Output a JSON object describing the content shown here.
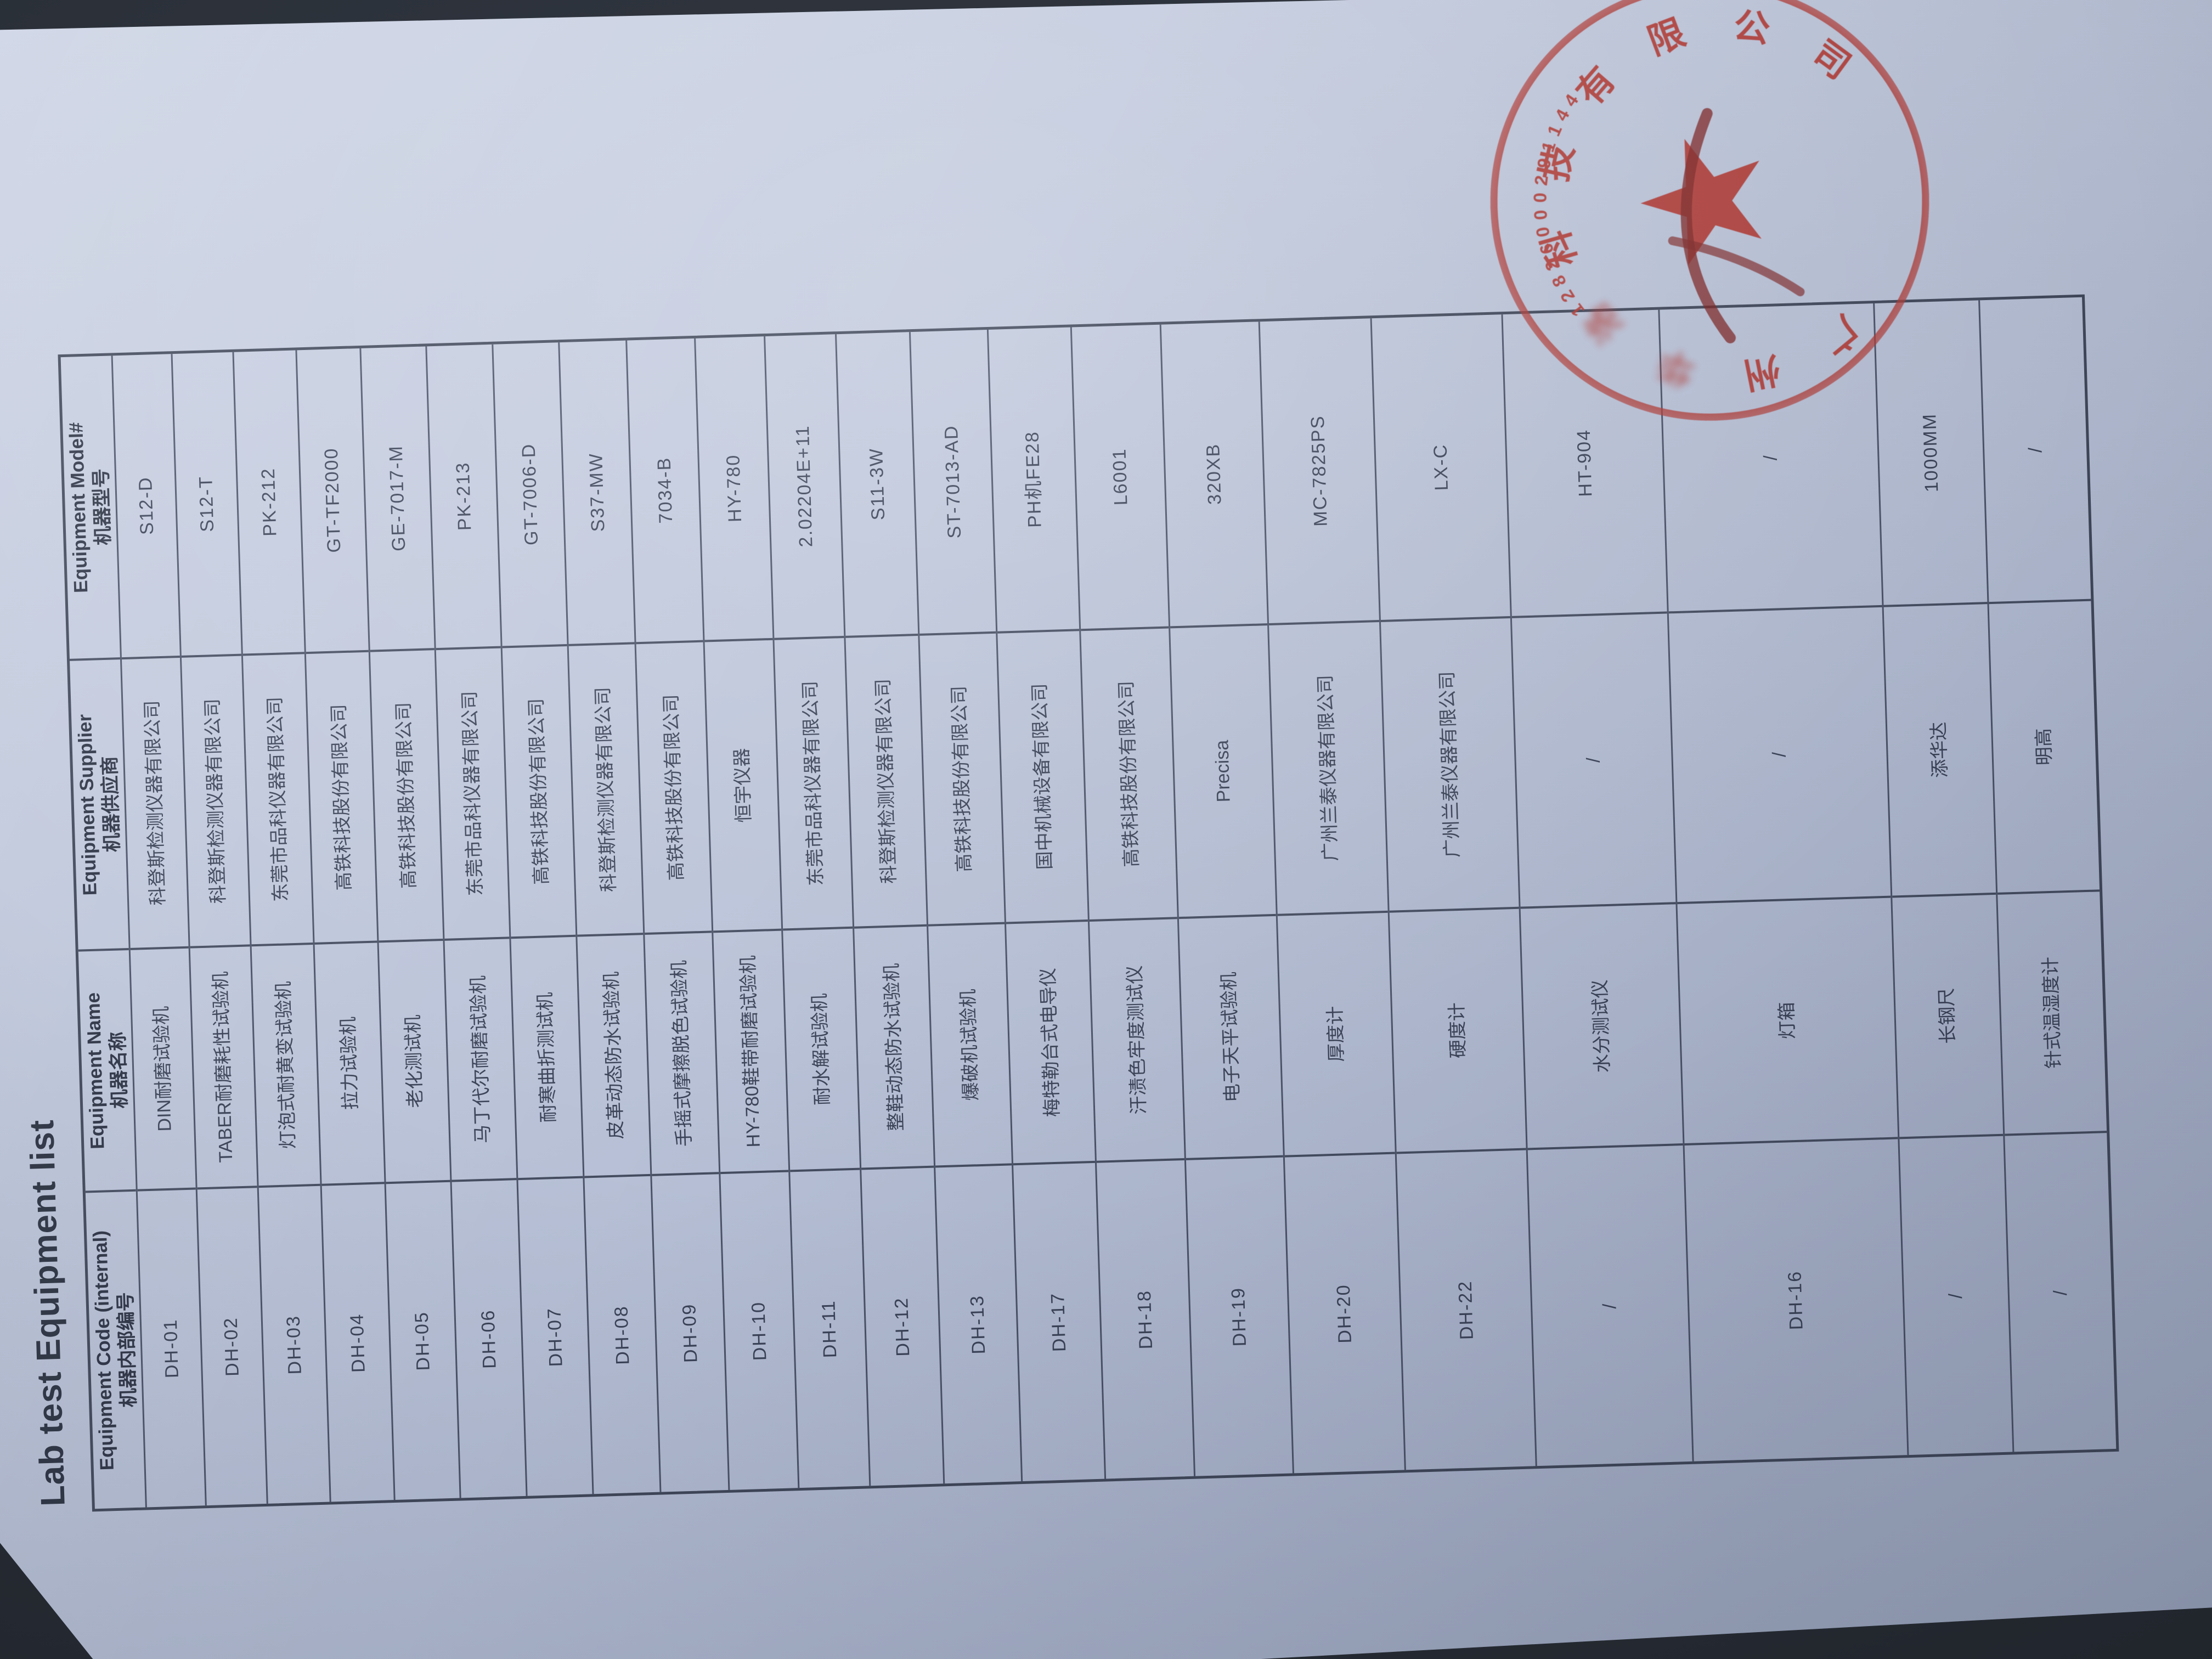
{
  "document": {
    "title": "Lab test Equipment list",
    "columns": [
      {
        "en": "Equipment Code (internal)",
        "zh": "机器内部编号"
      },
      {
        "en": "Equipment Name",
        "zh": "机器名称"
      },
      {
        "en": "Equipment Supplier",
        "zh": "机器供应商"
      },
      {
        "en": "Equipment Model#",
        "zh": "机器型号"
      }
    ],
    "items": [
      {
        "code": "DH-01",
        "name": "DIN耐磨试验机",
        "supplier": "科登斯检测仪器有限公司",
        "model": "S12-D"
      },
      {
        "code": "DH-02",
        "name": "TABER耐磨耗性试验机",
        "supplier": "科登斯检测仪器有限公司",
        "model": "S12-T"
      },
      {
        "code": "DH-03",
        "name": "灯泡式耐黄变试验机",
        "supplier": "东莞市品科仪器有限公司",
        "model": "PK-212"
      },
      {
        "code": "DH-04",
        "name": "拉力试验机",
        "supplier": "高铁科技股份有限公司",
        "model": "GT-TF2000"
      },
      {
        "code": "DH-05",
        "name": "老化测试机",
        "supplier": "高铁科技股份有限公司",
        "model": "GE-7017-M"
      },
      {
        "code": "DH-06",
        "name": "马丁代尔耐磨试验机",
        "supplier": "东莞市品科仪器有限公司",
        "model": "PK-213"
      },
      {
        "code": "DH-07",
        "name": "耐寒曲折测试机",
        "supplier": "高铁科技股份有限公司",
        "model": "GT-7006-D"
      },
      {
        "code": "DH-08",
        "name": "皮革动态防水试验机",
        "supplier": "科登斯检测仪器有限公司",
        "model": "S37-MW"
      },
      {
        "code": "DH-09",
        "name": "手摇式摩擦脱色试验机",
        "supplier": "高铁科技股份有限公司",
        "model": "7034-B"
      },
      {
        "code": "DH-10",
        "name": "HY-780鞋带耐磨试验机",
        "supplier": "恒宇仪器",
        "model": "HY-780"
      },
      {
        "code": "DH-11",
        "name": "耐水解试验机",
        "supplier": "东莞市品科仪器有限公司",
        "model": "2.02204E+11"
      },
      {
        "code": "DH-12",
        "name": "整鞋动态防水试验机",
        "supplier": "科登斯检测仪器有限公司",
        "model": "S11-3W"
      },
      {
        "code": "DH-13",
        "name": "爆破机试验机",
        "supplier": "高铁科技股份有限公司",
        "model": "ST-7013-AD"
      },
      {
        "code": "DH-17",
        "name": "梅特勒台式电导仪",
        "supplier": "国中机械设备有限公司",
        "model": "PH机FE28"
      },
      {
        "code": "DH-18",
        "name": "汗渍色牢度测试仪",
        "supplier": "高铁科技股份有限公司",
        "model": "L6001"
      },
      {
        "code": "DH-19",
        "name": "电子天平试验机",
        "supplier": "Precisa",
        "model": "320XB"
      },
      {
        "code": "DH-20",
        "name": "厚度计",
        "supplier": "广州兰泰仪器有限公司",
        "model": "MC-7825PS"
      },
      {
        "code": "DH-22",
        "name": "硬度计",
        "supplier": "广州兰泰仪器有限公司",
        "model": "LX-C"
      },
      {
        "code": "/",
        "name": "水分测试仪",
        "supplier": "/",
        "model": "HT-904"
      },
      {
        "code": "DH-16",
        "name": "灯箱",
        "supplier": "/",
        "model": "/"
      },
      {
        "code": "/",
        "name": "长钢尺",
        "supplier": "添华达",
        "model": "1000MM"
      },
      {
        "code": "/",
        "name": "针式温湿度计",
        "supplier": "明高",
        "model": "/"
      }
    ]
  },
  "stamp": {
    "color": "#b23a34",
    "top_arc_text_visible": "科技有限公司",
    "arc_text_leading": "广州",
    "arc_text_blurred": "华洛",
    "code_arc_digits": "44119200062821",
    "center_icon": "star"
  }
}
